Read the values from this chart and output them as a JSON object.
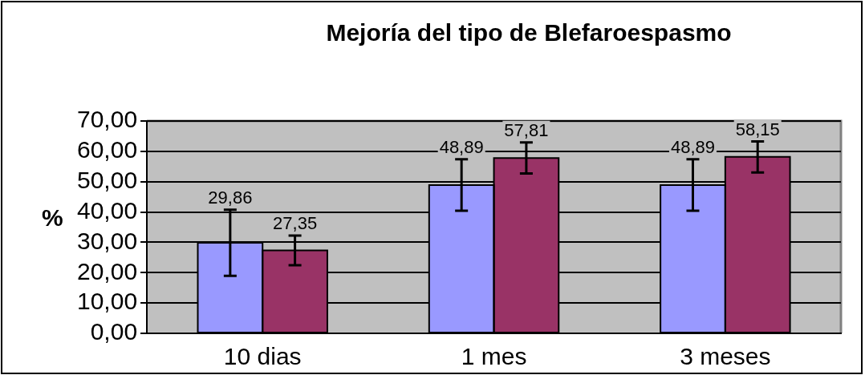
{
  "chart_data": {
    "type": "bar",
    "title": "Mejoría del tipo de Blefaroespasmo",
    "ylabel": "%",
    "categories": [
      "10 dias",
      "1 mes",
      "3 meses"
    ],
    "series": [
      {
        "color": "#9999ff",
        "values": [
          29.86,
          48.89,
          48.89
        ],
        "errors": [
          10.9,
          8.5,
          8.5
        ],
        "value_labels": [
          "29,86",
          "48,89",
          "48,89"
        ]
      },
      {
        "color": "#993366",
        "values": [
          27.35,
          57.81,
          58.15
        ],
        "errors": [
          4.9,
          5.1,
          5.1
        ],
        "value_labels": [
          "27,35",
          "57,81",
          "58,15"
        ]
      }
    ],
    "ylim": [
      0,
      70
    ],
    "yticks": [
      {
        "value": 0,
        "label": "0,00"
      },
      {
        "value": 10,
        "label": "10,00"
      },
      {
        "value": 20,
        "label": "20,00"
      },
      {
        "value": 30,
        "label": "30,00"
      },
      {
        "value": 40,
        "label": "40,00"
      },
      {
        "value": 50,
        "label": "50,00"
      },
      {
        "value": 60,
        "label": "60,00"
      },
      {
        "value": 70,
        "label": "70,00"
      }
    ],
    "grid": "y"
  }
}
